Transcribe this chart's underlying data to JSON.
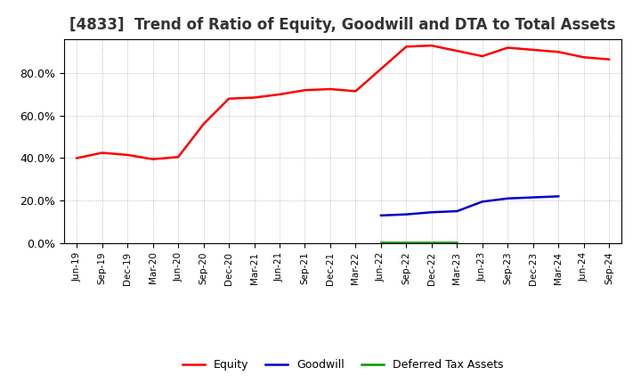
{
  "title": "[4833]  Trend of Ratio of Equity, Goodwill and DTA to Total Assets",
  "title_fontsize": 12,
  "title_color": "#333333",
  "background_color": "#ffffff",
  "plot_bg_color": "#ffffff",
  "grid_color": "#999999",
  "x_labels": [
    "Jun-19",
    "Sep-19",
    "Dec-19",
    "Mar-20",
    "Jun-20",
    "Sep-20",
    "Dec-20",
    "Mar-21",
    "Jun-21",
    "Sep-21",
    "Dec-21",
    "Mar-22",
    "Jun-22",
    "Sep-22",
    "Dec-22",
    "Mar-23",
    "Jun-23",
    "Sep-23",
    "Dec-23",
    "Mar-24",
    "Jun-24",
    "Sep-24"
  ],
  "equity": [
    40.0,
    42.5,
    41.5,
    39.5,
    40.5,
    56.0,
    68.0,
    68.5,
    70.0,
    72.0,
    72.5,
    71.5,
    82.0,
    92.5,
    93.0,
    90.5,
    88.0,
    92.0,
    91.0,
    90.0,
    87.5,
    86.5
  ],
  "goodwill": [
    null,
    null,
    null,
    null,
    null,
    null,
    null,
    null,
    null,
    null,
    null,
    null,
    13.0,
    13.5,
    14.5,
    15.0,
    19.5,
    21.0,
    21.5,
    22.0,
    null,
    null
  ],
  "dta": [
    null,
    null,
    null,
    null,
    null,
    null,
    null,
    null,
    null,
    null,
    null,
    null,
    0.5,
    0.5,
    0.5,
    0.5,
    null,
    null,
    null,
    null,
    null,
    null
  ],
  "equity_color": "#ff0000",
  "goodwill_color": "#0000cc",
  "dta_color": "#009900",
  "ylim": [
    0,
    96
  ],
  "yticks": [
    0,
    20,
    40,
    60,
    80
  ],
  "ytick_labels": [
    "0.0%",
    "20.0%",
    "40.0%",
    "60.0%",
    "80.0%"
  ],
  "legend_labels": [
    "Equity",
    "Goodwill",
    "Deferred Tax Assets"
  ],
  "linewidth": 1.8
}
